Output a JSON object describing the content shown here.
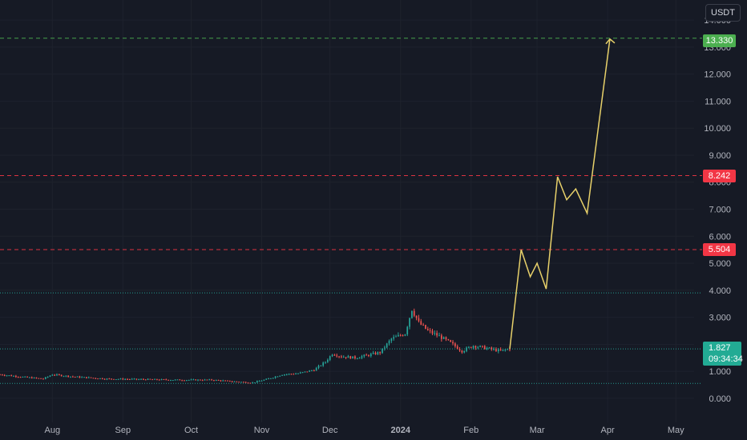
{
  "quote_currency": "USDT",
  "price_badges": {
    "target": "13.330",
    "level_upper": "8.242",
    "level_lower": "5.504",
    "last_price": "1.827",
    "countdown": "09:34:34"
  },
  "colors": {
    "background": "#161a25",
    "grid": "#1e222d",
    "up_candle": "#26a69a",
    "down_candle": "#ef5350",
    "projection": "#e8d16a",
    "target_line": "#4caf50",
    "resistance_line": "#f23645",
    "support_line": "#26a69a"
  },
  "chart_data": {
    "type": "candlestick",
    "y_axis": {
      "ticks": [
        "0.000",
        "1.000",
        "2.000",
        "3.000",
        "4.000",
        "5.000",
        "6.000",
        "7.000",
        "8.000",
        "9.000",
        "10.000",
        "11.000",
        "12.000",
        "13.000",
        "14.000"
      ],
      "ylim": [
        -0.3,
        14.3
      ],
      "side": "right"
    },
    "x_axis": {
      "tick_labels": [
        "Aug",
        "Sep",
        "Oct",
        "Nov",
        "Dec",
        "2024",
        "Feb",
        "Mar",
        "Apr",
        "May"
      ],
      "tick_dates": [
        "2023-08-01",
        "2023-09-01",
        "2023-10-01",
        "2023-11-01",
        "2023-12-01",
        "2024-01-01",
        "2024-02-01",
        "2024-03-01",
        "2024-04-01",
        "2024-05-01"
      ],
      "xlim": [
        "2023-07-09",
        "2024-05-09"
      ]
    },
    "horizontal_levels": [
      {
        "value": 13.33,
        "style": "dashed",
        "color": "#4caf50",
        "label": "13.330"
      },
      {
        "value": 8.242,
        "style": "dashed",
        "color": "#f23645",
        "label": "8.242"
      },
      {
        "value": 5.504,
        "style": "dashed",
        "color": "#f23645",
        "label": "5.504"
      },
      {
        "value": 3.9,
        "style": "dotted",
        "color": "#26a69a"
      },
      {
        "value": 1.827,
        "style": "dotted",
        "color": "#26a69a"
      },
      {
        "value": 0.55,
        "style": "dotted",
        "color": "#26a69a"
      }
    ],
    "price_path": [
      [
        "2023-07-09",
        0.88
      ],
      [
        "2023-07-20",
        0.78
      ],
      [
        "2023-07-28",
        0.72
      ],
      [
        "2023-08-01",
        0.88
      ],
      [
        "2023-08-10",
        0.8
      ],
      [
        "2023-08-25",
        0.72
      ],
      [
        "2023-09-10",
        0.7
      ],
      [
        "2023-09-25",
        0.68
      ],
      [
        "2023-10-10",
        0.68
      ],
      [
        "2023-10-20",
        0.62
      ],
      [
        "2023-10-28",
        0.58
      ],
      [
        "2023-11-03",
        0.7
      ],
      [
        "2023-11-10",
        0.88
      ],
      [
        "2023-11-17",
        0.92
      ],
      [
        "2023-11-24",
        1.05
      ],
      [
        "2023-11-29",
        1.35
      ],
      [
        "2023-12-02",
        1.65
      ],
      [
        "2023-12-06",
        1.55
      ],
      [
        "2023-12-12",
        1.5
      ],
      [
        "2023-12-18",
        1.6
      ],
      [
        "2023-12-23",
        1.7
      ],
      [
        "2023-12-28",
        2.2
      ],
      [
        "2024-01-03",
        2.4
      ],
      [
        "2024-01-06",
        3.3
      ],
      [
        "2024-01-09",
        2.8
      ],
      [
        "2024-01-13",
        2.5
      ],
      [
        "2024-01-18",
        2.3
      ],
      [
        "2024-01-23",
        2.05
      ],
      [
        "2024-01-28",
        1.75
      ],
      [
        "2024-02-02",
        1.95
      ],
      [
        "2024-02-08",
        1.85
      ],
      [
        "2024-02-14",
        1.75
      ],
      [
        "2024-02-18",
        1.83
      ]
    ],
    "projection": [
      [
        "2024-02-18",
        1.83
      ],
      [
        "2024-02-23",
        5.5
      ],
      [
        "2024-02-27",
        4.5
      ],
      [
        "2024-03-01",
        5.0
      ],
      [
        "2024-03-05",
        4.05
      ],
      [
        "2024-03-10",
        8.2
      ],
      [
        "2024-03-14",
        7.35
      ],
      [
        "2024-03-18",
        7.75
      ],
      [
        "2024-03-23",
        6.85
      ],
      [
        "2024-04-02",
        13.3
      ]
    ]
  }
}
